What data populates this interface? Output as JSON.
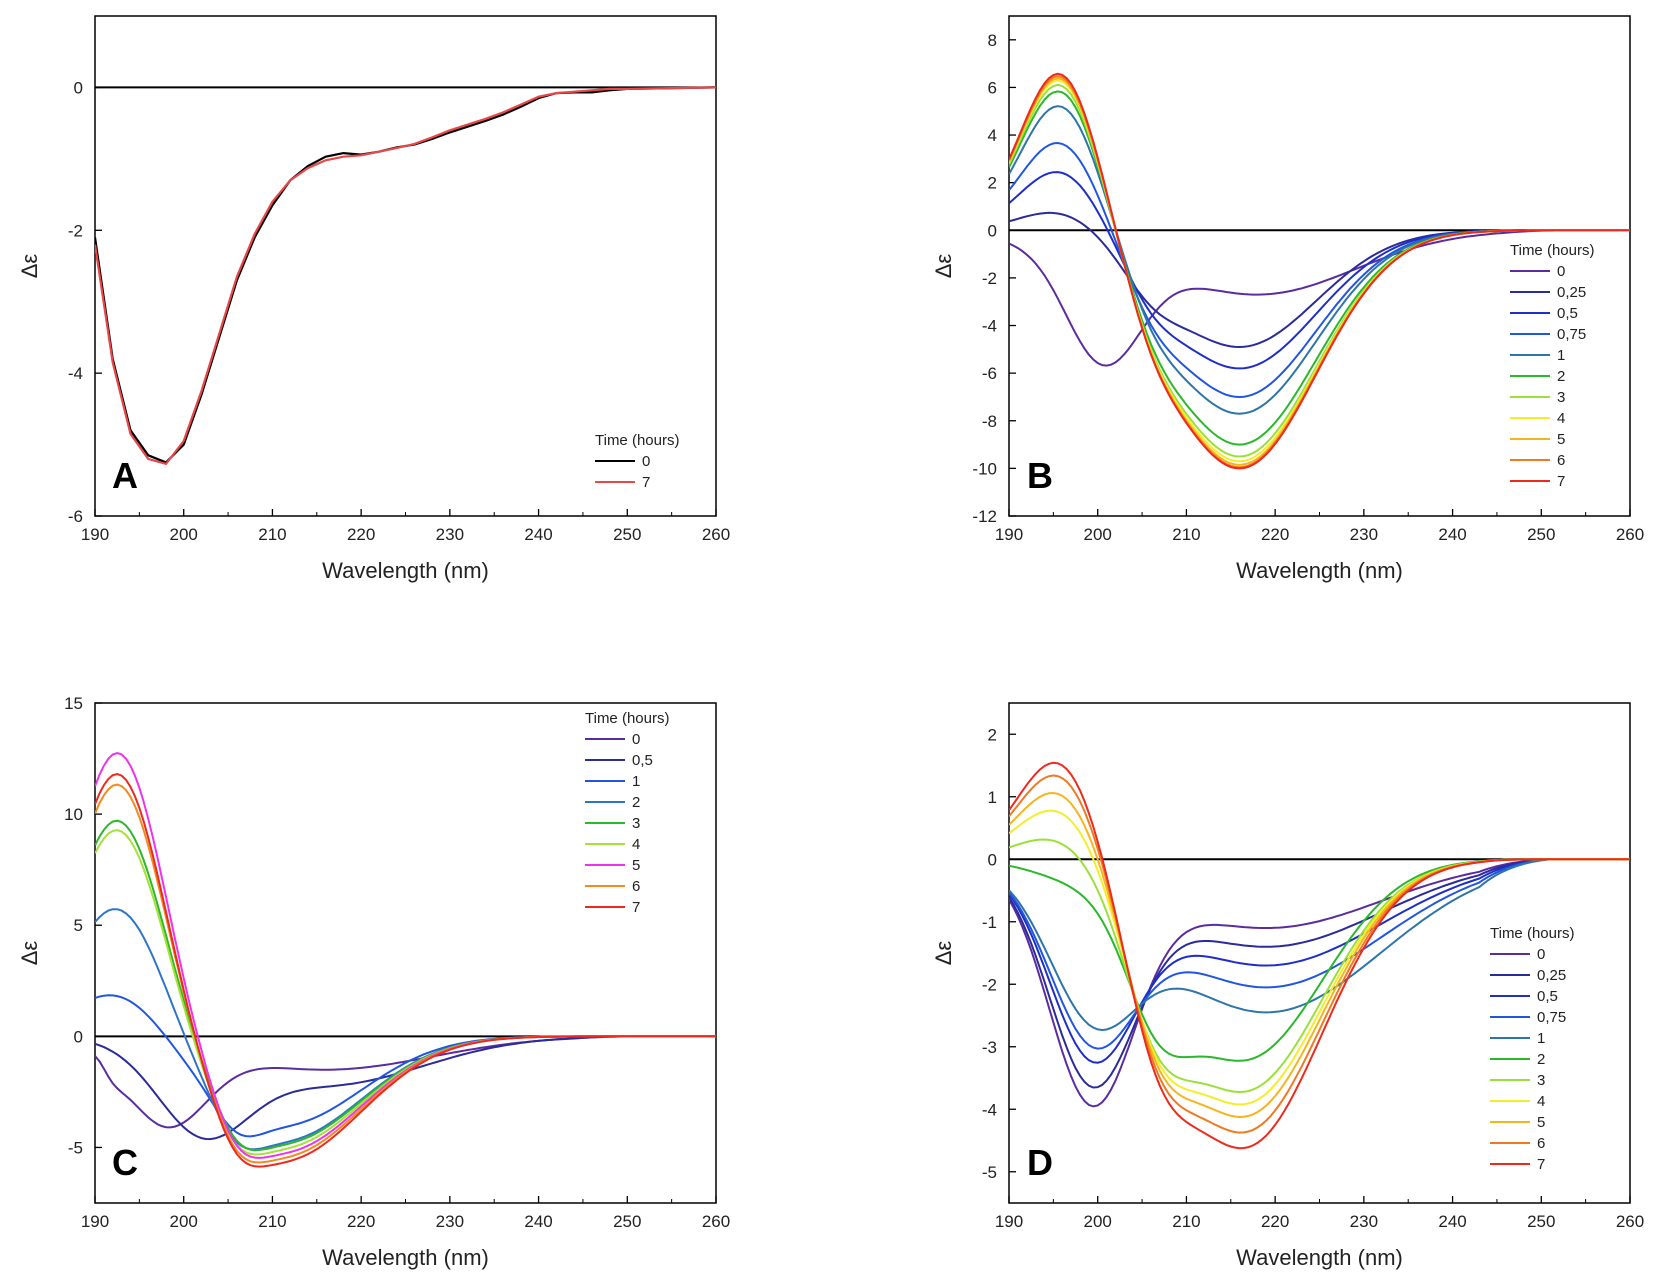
{
  "figure": {
    "panels": [
      "A",
      "B",
      "C",
      "D"
    ]
  },
  "chart_data": [
    {
      "panel": "A",
      "type": "line",
      "xlabel": "Wavelength (nm)",
      "ylabel": "Δε",
      "xlim": [
        190,
        260
      ],
      "ylim": [
        -6,
        1
      ],
      "xticks": [
        190,
        200,
        210,
        220,
        230,
        240,
        250,
        260
      ],
      "yticks": [
        -6,
        -4,
        -2,
        0
      ],
      "legend": {
        "title": "Time (hours)",
        "position": "bottom-right"
      },
      "colors": {
        "0": "#000000",
        "7": "#e8484a"
      },
      "x": [
        190,
        192,
        194,
        196,
        198,
        200,
        202,
        204,
        206,
        208,
        210,
        212,
        214,
        216,
        218,
        220,
        222,
        224,
        226,
        228,
        230,
        232,
        234,
        236,
        238,
        240,
        242,
        244,
        246,
        248,
        250,
        255,
        260
      ],
      "series": [
        {
          "name": "0",
          "values": [
            -2.1,
            -3.8,
            -4.8,
            -5.15,
            -5.25,
            -5.0,
            -4.3,
            -3.5,
            -2.7,
            -2.1,
            -1.65,
            -1.3,
            -1.1,
            -0.97,
            -0.92,
            -0.94,
            -0.9,
            -0.84,
            -0.8,
            -0.72,
            -0.63,
            -0.55,
            -0.47,
            -0.38,
            -0.27,
            -0.15,
            -0.08,
            -0.07,
            -0.07,
            -0.04,
            -0.02,
            -0.01,
            0
          ]
        },
        {
          "name": "7",
          "values": [
            -2.2,
            -3.85,
            -4.85,
            -5.2,
            -5.27,
            -4.95,
            -4.25,
            -3.45,
            -2.65,
            -2.05,
            -1.6,
            -1.3,
            -1.13,
            -1.02,
            -0.97,
            -0.95,
            -0.9,
            -0.85,
            -0.79,
            -0.7,
            -0.6,
            -0.52,
            -0.44,
            -0.35,
            -0.24,
            -0.13,
            -0.08,
            -0.06,
            -0.04,
            -0.02,
            -0.02,
            -0.01,
            0
          ]
        }
      ]
    },
    {
      "panel": "B",
      "type": "line",
      "xlabel": "Wavelength (nm)",
      "ylabel": "Δε",
      "xlim": [
        190,
        260
      ],
      "ylim": [
        -12,
        9
      ],
      "xticks": [
        190,
        200,
        210,
        220,
        230,
        240,
        250,
        260
      ],
      "yticks": [
        -12,
        -10,
        -8,
        -6,
        -4,
        -2,
        0,
        2,
        4,
        6,
        8
      ],
      "legend": {
        "title": "Time (hours)",
        "position": "right"
      },
      "series": [
        {
          "name": "0",
          "color": "#5a2ca0",
          "peak": -0.2,
          "trough": -2.7
        },
        {
          "name": "0,25",
          "color": "#2b2b9a",
          "peak": 1.0,
          "trough": -4.9
        },
        {
          "name": "0,5",
          "color": "#1f2ec9",
          "peak": 2.8,
          "trough": -5.8
        },
        {
          "name": "0,75",
          "color": "#2156e0",
          "peak": 4.1,
          "trough": -7.0
        },
        {
          "name": "1",
          "color": "#2e75a8",
          "peak": 5.7,
          "trough": -7.7
        },
        {
          "name": "2",
          "color": "#2bb82b",
          "peak": 6.4,
          "trough": -9.0
        },
        {
          "name": "3",
          "color": "#9be03a",
          "peak": 6.7,
          "trough": -9.5
        },
        {
          "name": "4",
          "color": "#f2ee2a",
          "peak": 6.9,
          "trough": -9.7
        },
        {
          "name": "5",
          "color": "#f5b51e",
          "peak": 7.0,
          "trough": -9.85
        },
        {
          "name": "6",
          "color": "#f07a22",
          "peak": 7.1,
          "trough": -9.95
        },
        {
          "name": "7",
          "color": "#ee2a1e",
          "peak": 7.2,
          "trough": -10.0
        }
      ]
    },
    {
      "panel": "C",
      "type": "line",
      "xlabel": "Wavelength (nm)",
      "ylabel": "Δε",
      "xlim": [
        190,
        260
      ],
      "ylim": [
        -7.5,
        15
      ],
      "xticks": [
        190,
        200,
        210,
        220,
        230,
        240,
        250,
        260
      ],
      "yticks": [
        -5,
        0,
        5,
        10,
        15
      ],
      "legend": {
        "title": "Time (hours)",
        "position": "top-right"
      },
      "series": [
        {
          "name": "0",
          "color": "#5a2ca0",
          "peak": -1.2,
          "trough": -1.5
        },
        {
          "name": "0,5",
          "color": "#2b2b9a",
          "peak": 0.0,
          "trough": -2.3
        },
        {
          "name": "1",
          "color": "#2156e0",
          "peak": 2.3,
          "trough": -4.0
        },
        {
          "name": "2",
          "color": "#2e75c8",
          "peak": 6.3,
          "trough": -4.7
        },
        {
          "name": "3",
          "color": "#2bb82b",
          "peak": 10.3,
          "trough": -4.8
        },
        {
          "name": "4",
          "color": "#a6e03a",
          "peak": 9.9,
          "trough": -5.0
        },
        {
          "name": "5",
          "color": "#ee33ee",
          "peak": 13.4,
          "trough": -5.2
        },
        {
          "name": "6",
          "color": "#f08a22",
          "peak": 12.0,
          "trough": -5.4
        },
        {
          "name": "7",
          "color": "#ee2a1e",
          "peak": 12.5,
          "trough": -5.6
        }
      ]
    },
    {
      "panel": "D",
      "type": "line",
      "xlabel": "Wavelength (nm)",
      "ylabel": "Δε",
      "xlim": [
        190,
        260
      ],
      "ylim": [
        -5.5,
        2.5
      ],
      "xticks": [
        190,
        200,
        210,
        220,
        230,
        240,
        250,
        260
      ],
      "yticks": [
        -5,
        -4,
        -3,
        -2,
        -1,
        0,
        1,
        2
      ],
      "legend": {
        "title": "Time (hours)",
        "position": "bottom-right"
      },
      "series": [
        {
          "name": "0",
          "color": "#5a2ca0",
          "peak": -3.6,
          "trough": -1.1
        },
        {
          "name": "0,25",
          "color": "#2b2b9a",
          "peak": -3.2,
          "trough": -1.4
        },
        {
          "name": "0,5",
          "color": "#1f2ec9",
          "peak": -2.7,
          "trough": -1.7
        },
        {
          "name": "0,75",
          "color": "#2156e0",
          "peak": -2.35,
          "trough": -2.05
        },
        {
          "name": "1",
          "color": "#2e75a8",
          "peak": -1.9,
          "trough": -2.45
        },
        {
          "name": "2",
          "color": "#2bb82b",
          "peak": -0.15,
          "trough": -3.2
        },
        {
          "name": "3",
          "color": "#9be03a",
          "peak": 0.5,
          "trough": -3.7
        },
        {
          "name": "4",
          "color": "#f2ee2a",
          "peak": 1.0,
          "trough": -3.9
        },
        {
          "name": "5",
          "color": "#f5b51e",
          "peak": 1.3,
          "trough": -4.1
        },
        {
          "name": "6",
          "color": "#f07a22",
          "peak": 1.6,
          "trough": -4.35
        },
        {
          "name": "7",
          "color": "#ee2a1e",
          "peak": 1.82,
          "trough": -4.6
        }
      ]
    }
  ]
}
